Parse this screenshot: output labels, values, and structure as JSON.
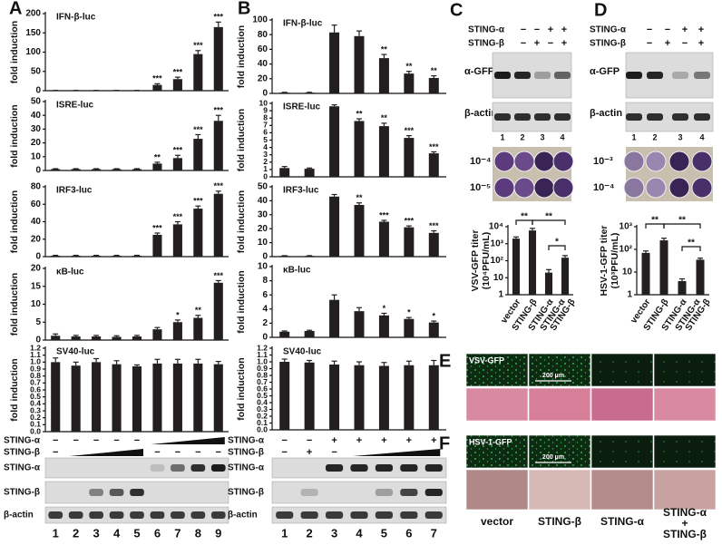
{
  "chart_data": [
    {
      "type": "bar",
      "title": "IFN-β-luc",
      "y_label": "fold induction",
      "color": "#231f20",
      "values": [
        0.5,
        0.5,
        0.5,
        0.5,
        0.5,
        15,
        30,
        95,
        165
      ],
      "errors": [
        0.3,
        0.3,
        0.3,
        0.3,
        0.3,
        3,
        5,
        9,
        13
      ],
      "annotations": [
        null,
        null,
        null,
        null,
        null,
        "***",
        "***",
        "***",
        "***"
      ],
      "ylim": [
        0,
        200
      ],
      "yticks": [
        0,
        50,
        100,
        150,
        200
      ]
    },
    {
      "type": "bar",
      "title": "ISRE-luc",
      "y_label": "fold induction",
      "color": "#231f20",
      "values": [
        1,
        1,
        1,
        1,
        1,
        5,
        9,
        23,
        36
      ],
      "errors": [
        0.3,
        0.3,
        0.3,
        0.3,
        0.3,
        1,
        2,
        3,
        4
      ],
      "annotations": [
        null,
        null,
        null,
        null,
        null,
        "**",
        "***",
        "***",
        "***"
      ],
      "ylim": [
        0,
        50
      ],
      "yticks": [
        0,
        10,
        20,
        30,
        40,
        50
      ]
    },
    {
      "type": "bar",
      "title": "IRF3-luc",
      "y_label": "fold induction",
      "color": "#231f20",
      "values": [
        1,
        1,
        1,
        1,
        1,
        25,
        37,
        55,
        72
      ],
      "errors": [
        0.5,
        0.5,
        0.5,
        0.5,
        0.5,
        2,
        3,
        3,
        3
      ],
      "annotations": [
        null,
        null,
        null,
        null,
        null,
        "***",
        "***",
        "***",
        "***"
      ],
      "ylim": [
        0,
        80
      ],
      "yticks": [
        0,
        20,
        40,
        60,
        80
      ]
    },
    {
      "type": "bar",
      "title": "κB-luc",
      "y_label": "fold induction",
      "color": "#231f20",
      "values": [
        1.2,
        1,
        1,
        0.9,
        1,
        3,
        5,
        6.2,
        16
      ],
      "errors": [
        0.5,
        0.3,
        0.3,
        0.3,
        0.3,
        0.5,
        0.6,
        0.7,
        0.6
      ],
      "annotations": [
        null,
        null,
        null,
        null,
        null,
        null,
        "*",
        "**",
        "***"
      ],
      "ylim": [
        0,
        20
      ],
      "yticks": [
        0,
        5,
        10,
        15,
        20
      ]
    },
    {
      "type": "bar",
      "title": "SV40-luc",
      "y_label": "fold induction",
      "color": "#231f20",
      "values": [
        1.0,
        0.95,
        1.0,
        0.97,
        0.94,
        0.98,
        0.98,
        0.98,
        0.97
      ],
      "errors": [
        0.06,
        0.05,
        0.05,
        0.05,
        0.02,
        0.06,
        0.06,
        0.06,
        0.04
      ],
      "annotations": [
        null,
        null,
        null,
        null,
        null,
        null,
        null,
        null,
        null
      ],
      "ylim": [
        0,
        1.2
      ],
      "yticks": [
        {
          "value": 0,
          "label": "0.0"
        },
        0.1,
        0.2,
        0.3,
        0.4,
        0.5,
        0.6,
        0.7,
        0.8,
        0.9,
        {
          "value": 1,
          "label": "1.0"
        },
        1.1,
        1.2
      ]
    },
    {
      "type": "bar",
      "title": "IFN-β-luc",
      "y_label": "fold induction",
      "color": "#231f20",
      "values": [
        1,
        1,
        83,
        78,
        48,
        27,
        21
      ],
      "errors": [
        0.5,
        0.5,
        10,
        7,
        5,
        3,
        3
      ],
      "annotations": [
        null,
        null,
        null,
        null,
        "**",
        "**",
        "**"
      ],
      "ylim": [
        0,
        100
      ],
      "yticks": [
        0,
        20,
        40,
        60,
        80,
        100
      ]
    },
    {
      "type": "bar",
      "title": "ISRE-luc",
      "y_label": "fold induction",
      "color": "#231f20",
      "values": [
        1.2,
        1.1,
        9.6,
        7.6,
        6.9,
        5.3,
        3.2
      ],
      "errors": [
        0.2,
        0.1,
        0.2,
        0.3,
        0.4,
        0.3,
        0.2
      ],
      "annotations": [
        null,
        null,
        null,
        "**",
        "**",
        "***",
        "***"
      ],
      "ylim": [
        0,
        10
      ],
      "yticks": [
        0,
        1,
        2,
        3,
        4,
        5,
        6,
        7,
        8,
        9,
        10
      ]
    },
    {
      "type": "bar",
      "title": "IRF3-luc",
      "y_label": "fold induction",
      "color": "#231f20",
      "values": [
        0.5,
        0.5,
        43,
        37,
        25,
        21,
        17
      ],
      "errors": [
        0.2,
        0.2,
        1.5,
        1.5,
        1,
        1,
        1.5
      ],
      "annotations": [
        null,
        null,
        null,
        "**",
        "***",
        "***",
        "***"
      ],
      "ylim": [
        0,
        50
      ],
      "yticks": [
        0,
        10,
        20,
        30,
        40,
        50
      ]
    },
    {
      "type": "bar",
      "title": "κB-luc",
      "y_label": "fold induction",
      "color": "#231f20",
      "values": [
        0.8,
        0.9,
        5.3,
        3.7,
        3.1,
        2.6,
        2.1
      ],
      "errors": [
        0.1,
        0.1,
        0.7,
        0.5,
        0.3,
        0.2,
        0.2
      ],
      "annotations": [
        null,
        null,
        null,
        null,
        "*",
        "*",
        "*"
      ],
      "ylim": [
        0,
        10
      ],
      "yticks": [
        0,
        2,
        4,
        6,
        8,
        10
      ]
    },
    {
      "type": "bar",
      "title": "SV40-luc",
      "y_label": "fold induction",
      "color": "#231f20",
      "values": [
        1.0,
        0.99,
        0.96,
        0.95,
        0.94,
        0.95,
        0.95
      ],
      "errors": [
        0.04,
        0.03,
        0.05,
        0.05,
        0.05,
        0.06,
        0.07
      ],
      "annotations": [
        null,
        null,
        null,
        null,
        null,
        null,
        null
      ],
      "ylim": [
        0,
        1.2
      ],
      "yticks": [
        {
          "value": 0,
          "label": "0.0"
        },
        0.1,
        0.2,
        0.3,
        0.4,
        0.5,
        0.6,
        0.7,
        0.8,
        0.9,
        {
          "value": 1,
          "label": "1.0"
        },
        1.1,
        1.2
      ]
    },
    {
      "type": "bar",
      "y_label": [
        "VSV-GFP titer",
        "(10⁴PFU/mL)"
      ],
      "color": "#231f20",
      "log_scale": true,
      "categories": [
        "vector",
        "STING-β",
        "STING-α",
        [
          "STING-α",
          "STING-β"
        ]
      ],
      "values": [
        2000,
        6000,
        20,
        150
      ],
      "errors": [
        500,
        2000,
        10,
        50
      ],
      "significance": [
        "**",
        "**",
        "*"
      ],
      "ylim": [
        1,
        10000
      ],
      "yticks": [
        1,
        10,
        {
          "value": 100,
          "label": "10²"
        },
        {
          "value": 1000,
          "label": "10³"
        },
        {
          "value": 10000,
          "label": "10⁴"
        }
      ]
    },
    {
      "type": "bar",
      "y_label": [
        "HSV-1-GFP titer",
        "(10³PFU/mL)"
      ],
      "color": "#231f20",
      "log_scale": true,
      "categories": [
        "vector",
        "STING-β",
        "STING-α",
        [
          "STING-α",
          "STING-β"
        ]
      ],
      "values": [
        70,
        250,
        4,
        35
      ],
      "errors": [
        15,
        60,
        1,
        6
      ],
      "significance": [
        "**",
        "**",
        "**"
      ],
      "ylim": [
        1,
        1000
      ],
      "yticks": [
        1,
        10,
        {
          "value": 100,
          "label": "10²"
        },
        {
          "value": 1000,
          "label": "10³"
        }
      ]
    }
  ],
  "panel_labels": [
    "A",
    "B",
    "C",
    "D",
    "E",
    "F"
  ],
  "blots": {
    "A": {
      "conditions": [
        {
          "name": "STING-α",
          "signs": [
            "−",
            "−",
            "−",
            "−",
            "−",
            null,
            null,
            null,
            null
          ]
        },
        {
          "name": "STING-β",
          "signs": [
            "−",
            null,
            null,
            null,
            null,
            "−",
            "−",
            "−",
            "−"
          ]
        }
      ],
      "rows": [
        "STING-α",
        "STING-β",
        "β-actin"
      ],
      "lanes": [
        1,
        2,
        3,
        4,
        5,
        6,
        7,
        8,
        9
      ]
    },
    "B": {
      "conditions": [
        {
          "name": "STING-α",
          "signs": [
            "−",
            "−",
            "+",
            "+",
            "+",
            "+",
            "+"
          ]
        },
        {
          "name": "STING-β",
          "signs": [
            "−",
            "+",
            "−",
            null,
            null,
            null,
            null
          ]
        }
      ],
      "rows": [
        "STING-α",
        "STING-β",
        "β-actin"
      ],
      "lanes": [
        1,
        2,
        3,
        4,
        5,
        6,
        7
      ]
    },
    "C": {
      "conditions": [
        {
          "name": "STING-α",
          "signs": [
            "−",
            "−",
            "+",
            "+"
          ]
        },
        {
          "name": "STING-β",
          "signs": [
            "−",
            "+",
            "−",
            "+"
          ]
        }
      ],
      "rows": [
        "α-GFP",
        "β-actin"
      ],
      "lanes": [
        1,
        2,
        3,
        4
      ],
      "dilutions": [
        "10⁻⁴",
        "10⁻⁵"
      ]
    },
    "D": {
      "conditions": [
        {
          "name": "STING-α",
          "signs": [
            "−",
            "−",
            "+",
            "+"
          ]
        },
        {
          "name": "STING-β",
          "signs": [
            "−",
            "+",
            "−",
            "+"
          ]
        }
      ],
      "rows": [
        "α-GFP",
        "β-actin"
      ],
      "lanes": [
        1,
        2,
        3,
        4
      ],
      "dilutions": [
        "10⁻³",
        "10⁻⁴"
      ]
    }
  },
  "micrographs": {
    "E": {
      "label": "VSV-GFP",
      "scale": "200 μm"
    },
    "F": {
      "label": "HSV-1-GFP",
      "scale": "200 μm"
    },
    "columns": [
      "vector",
      "STING-β",
      "STING-α",
      [
        "STING-α",
        "+",
        "STING-β"
      ]
    ]
  }
}
